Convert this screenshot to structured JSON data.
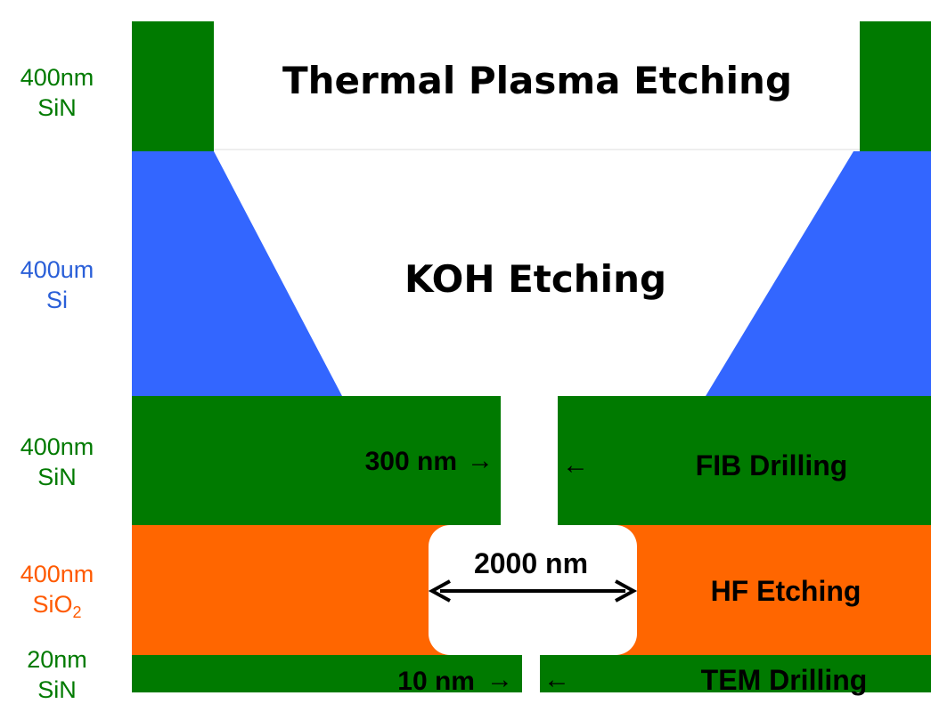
{
  "layer_labels": {
    "top_sin": {
      "thickness": "400nm",
      "material": "SiN"
    },
    "si": {
      "thickness": "400um",
      "material": "Si"
    },
    "mid_sin": {
      "thickness": "400nm",
      "material": "SiN"
    },
    "sio2": {
      "thickness": "400nm",
      "material": "SiO",
      "subscript": "2"
    },
    "bottom_sin": {
      "thickness": "20nm",
      "material": "SiN"
    }
  },
  "process_labels": {
    "thermal_plasma": "Thermal Plasma Etching",
    "koh": "KOH Etching",
    "fib": "FIB Drilling",
    "hf": "HF Etching",
    "tem": "TEM Drilling"
  },
  "dimensions": {
    "fib_width": "300 nm",
    "hf_width": "2000 nm",
    "tem_width": "10 nm",
    "arrow_right": "→",
    "arrow_left": "←"
  },
  "colors": {
    "sin": "#007a00",
    "si": "#3366ff",
    "sio2": "#ff6600",
    "background": "#ffffff"
  }
}
